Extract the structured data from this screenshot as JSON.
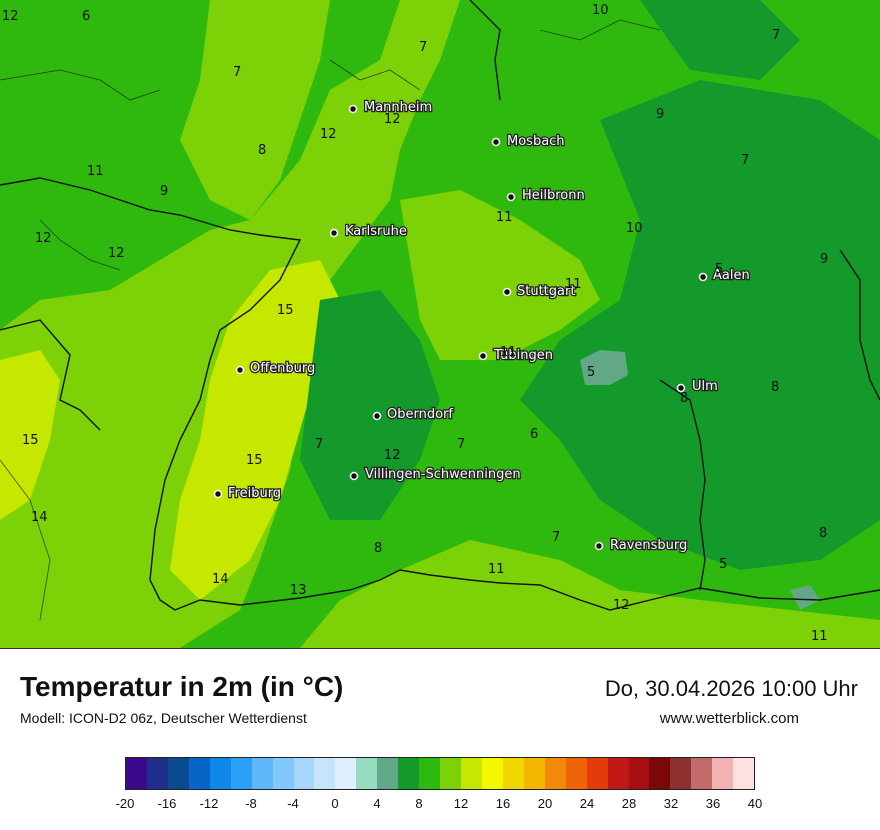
{
  "header": {
    "title": "Temperatur in 2m (in °C)",
    "subtitle": "Modell: ICON-D2 06z, Deutscher Wetterdienst",
    "datetime": "Do, 30.04.2026 10:00 Uhr",
    "website": "www.wetterblick.com"
  },
  "legend": {
    "ticks": [
      "-20",
      "-16",
      "-12",
      "-8",
      "-4",
      "0",
      "4",
      "8",
      "12",
      "16",
      "20",
      "24",
      "28",
      "32",
      "36",
      "40"
    ],
    "colors": [
      "#3b0a8c",
      "#1f2e8a",
      "#0b4a8f",
      "#0665c6",
      "#0f88ec",
      "#2aa1f7",
      "#5eb8fa",
      "#83c8fb",
      "#a6d6fd",
      "#c6e4fe",
      "#dfeffe",
      "#96dcc0",
      "#63a886",
      "#139a2a",
      "#2fb90e",
      "#7cd207",
      "#c5e700",
      "#f3f700",
      "#f2d600",
      "#f3b600",
      "#f28909",
      "#ef6407",
      "#e43b0b",
      "#c01717",
      "#a60f12",
      "#7a0808",
      "#8c3030",
      "#c26b6b",
      "#f2b2b2",
      "#fde0e0"
    ]
  },
  "cities": [
    {
      "name": "Mannheim",
      "icon": "city-dot"
    },
    {
      "name": "Mosbach",
      "icon": "city-dot"
    },
    {
      "name": "Heilbronn",
      "icon": "city-dot"
    },
    {
      "name": "Karlsruhe",
      "icon": "city-dot"
    },
    {
      "name": "Stuttgart",
      "icon": "city-dot"
    },
    {
      "name": "Aalen",
      "icon": "city-dot"
    },
    {
      "name": "Tübingen",
      "icon": "city-dot"
    },
    {
      "name": "Offenburg",
      "icon": "city-dot"
    },
    {
      "name": "Ulm",
      "icon": "city-dot"
    },
    {
      "name": "Oberndorf",
      "icon": "city-dot"
    },
    {
      "name": "Villingen-Schwenningen",
      "icon": "city-dot"
    },
    {
      "name": "Freiburg",
      "icon": "city-dot"
    },
    {
      "name": "Ravensburg",
      "icon": "city-dot"
    }
  ],
  "isolines": [
    "12",
    "6",
    "10",
    "7",
    "7",
    "7",
    "9",
    "8",
    "12",
    "12",
    "11",
    "9",
    "7",
    "12",
    "12",
    "11",
    "10",
    "9",
    "15",
    "11",
    "5",
    "11",
    "5",
    "8",
    "8",
    "15",
    "7",
    "12",
    "7",
    "6",
    "15",
    "14",
    "7",
    "8",
    "14",
    "11",
    "13",
    "12",
    "5",
    "8",
    "11"
  ]
}
